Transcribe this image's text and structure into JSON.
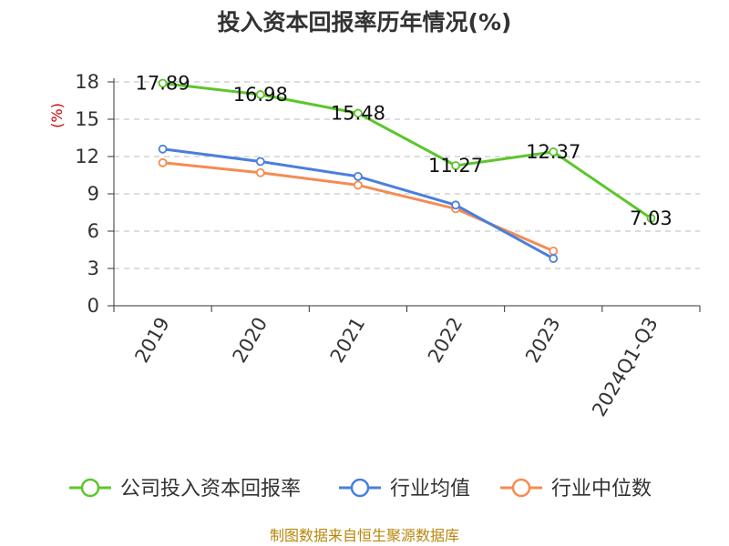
{
  "chart_data": {
    "type": "line",
    "title": "投入资本回报率历年情况(%)",
    "ylabel": "(%)",
    "categories": [
      "2019",
      "2020",
      "2021",
      "2022",
      "2023",
      "2024Q1-Q3"
    ],
    "ylim": [
      0,
      18
    ],
    "yticks": [
      0,
      3,
      6,
      9,
      12,
      15,
      18
    ],
    "grid": true,
    "legend_position": "bottom",
    "series": [
      {
        "name": "公司投入资本回报率",
        "color": "#5cc62b",
        "values": [
          17.89,
          16.98,
          15.48,
          11.27,
          12.37,
          7.03
        ],
        "labels": [
          "17.89",
          "16.98",
          "15.48",
          "11.27",
          "12.37",
          "7.03"
        ]
      },
      {
        "name": "行业均值",
        "color": "#4a7fdc",
        "values": [
          12.6,
          11.6,
          10.4,
          8.1,
          3.8,
          null
        ]
      },
      {
        "name": "行业中位数",
        "color": "#f58b53",
        "values": [
          11.5,
          10.7,
          9.7,
          7.8,
          4.4,
          null
        ]
      }
    ],
    "source": "制图数据来自恒生聚源数据库"
  }
}
